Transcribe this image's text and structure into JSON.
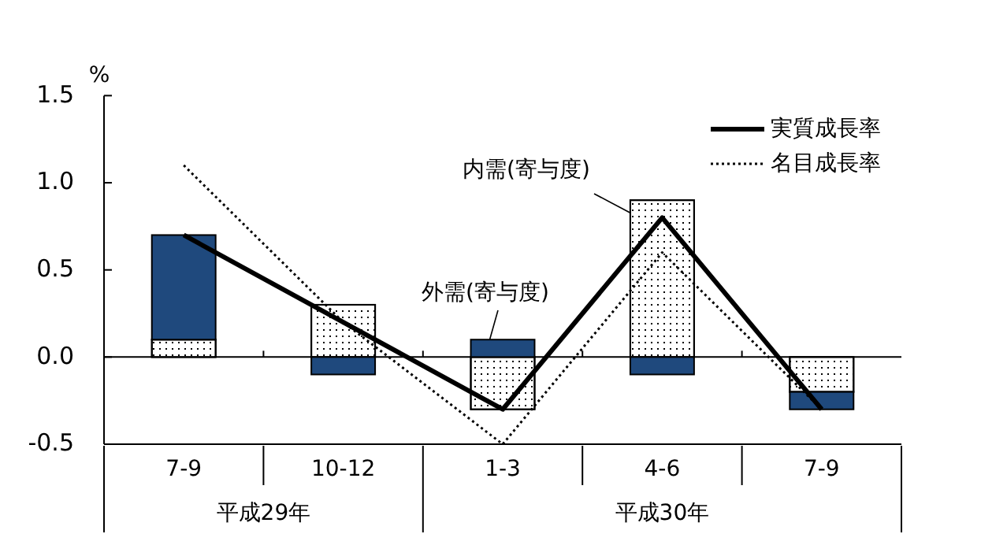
{
  "chart_data": {
    "type": "bar",
    "stacked": true,
    "ylabel": "%",
    "categories": [
      "7-9",
      "10-12",
      "1-3",
      "4-6",
      "7-9"
    ],
    "series": [
      {
        "name": "内需(寄与度)",
        "color": "#ffffff",
        "values": [
          0.1,
          0.3,
          -0.3,
          0.9,
          -0.2
        ]
      },
      {
        "name": "外需(寄与度)",
        "color": "#1f497d",
        "values": [
          0.6,
          -0.1,
          0.1,
          -0.1,
          -0.1
        ]
      },
      {
        "name": "実質成長率",
        "type": "line",
        "color": "#000000",
        "line_style": "solid",
        "values": [
          0.7,
          0.2,
          -0.3,
          0.8,
          -0.3
        ]
      },
      {
        "name": "名目成長率",
        "type": "line",
        "color": "#000000",
        "line_style": "dotted",
        "values": [
          1.1,
          0.2,
          -0.5,
          0.6,
          -0.3
        ]
      }
    ],
    "ylim": [
      -0.5,
      1.5
    ],
    "yticks": [
      {
        "value": -0.5,
        "label": "-0.5"
      },
      {
        "value": 0,
        "label": "0.0"
      },
      {
        "value": 0.5,
        "label": "0.5"
      },
      {
        "value": 1,
        "label": "1.0"
      },
      {
        "value": 1.5,
        "label": "1.5"
      }
    ],
    "legend": "top right",
    "annotations": [
      "平成29年",
      "平成30年"
    ]
  }
}
